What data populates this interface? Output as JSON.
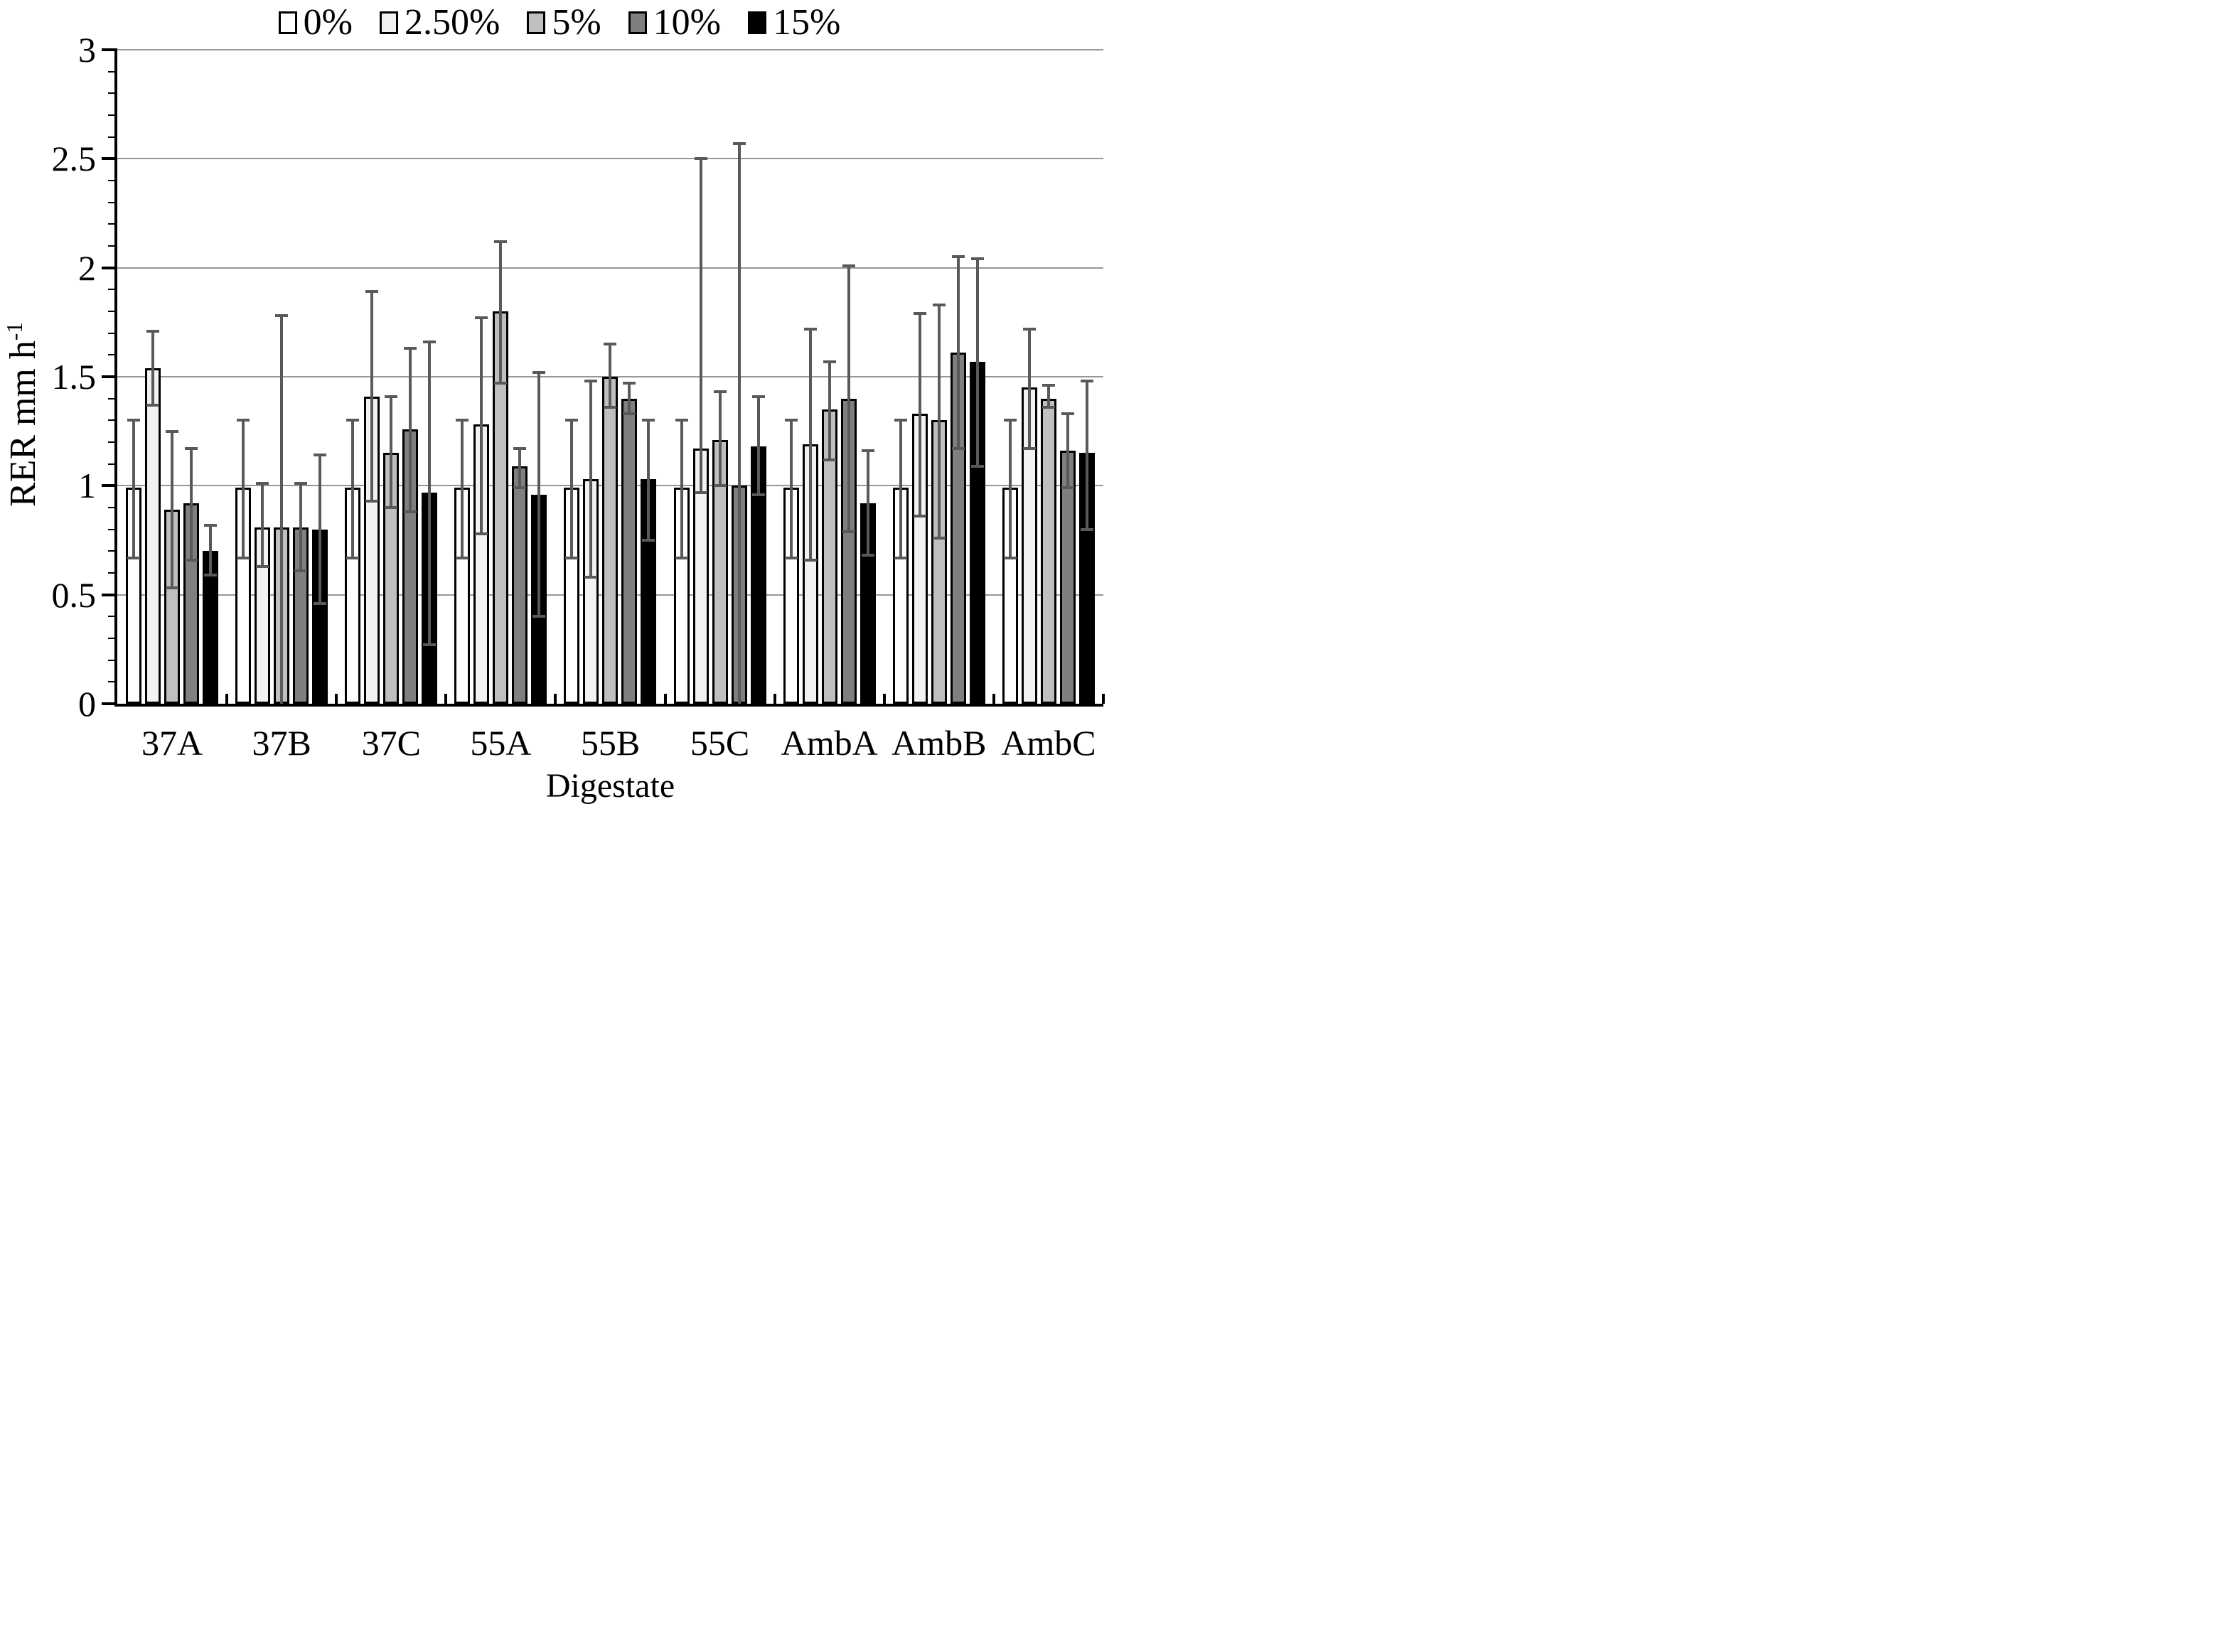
{
  "chart_data": {
    "type": "bar",
    "title": "",
    "xlabel": "Digestate",
    "ylabel_main": "RER mm h",
    "ylabel_sup": "-1",
    "ylim": [
      0,
      3
    ],
    "ytick_step": 0.5,
    "ytick_minor_step": 0.1,
    "ytick_labels": [
      "0",
      "0.5",
      "1",
      "1.5",
      "2",
      "2.5",
      "3"
    ],
    "grid": true,
    "legend_position": "top",
    "error_bar_color": "#595959",
    "gridline_color": "#979797",
    "categories": [
      "37A",
      "37B",
      "37C",
      "55A",
      "55B",
      "55C",
      "AmbA",
      "AmbB",
      "AmbC"
    ],
    "series": [
      {
        "name": "0%",
        "color": "#ffffff",
        "values": [
          0.99,
          0.99,
          0.99,
          0.99,
          0.99,
          0.99,
          0.99,
          0.99,
          0.99
        ],
        "err_lo": [
          0.67,
          0.67,
          0.67,
          0.67,
          0.67,
          0.67,
          0.67,
          0.67,
          0.67
        ],
        "err_hi": [
          1.3,
          1.3,
          1.3,
          1.3,
          1.3,
          1.3,
          1.3,
          1.3,
          1.3
        ]
      },
      {
        "name": "2.50%",
        "color": "#f2f2f2",
        "values": [
          1.54,
          0.81,
          1.41,
          1.28,
          1.03,
          1.17,
          1.19,
          1.33,
          1.45
        ],
        "err_lo": [
          1.37,
          0.63,
          0.93,
          0.78,
          0.58,
          0.97,
          0.66,
          0.86,
          1.17
        ],
        "err_hi": [
          1.71,
          1.01,
          1.89,
          1.77,
          1.48,
          2.5,
          1.72,
          1.79,
          1.72
        ]
      },
      {
        "name": "5%",
        "color": "#bfbfbf",
        "values": [
          0.89,
          0.81,
          1.15,
          1.8,
          1.5,
          1.21,
          1.35,
          1.3,
          1.4
        ],
        "err_lo": [
          0.53,
          0.0,
          0.9,
          1.47,
          1.36,
          1.0,
          1.12,
          0.76,
          1.36
        ],
        "err_hi": [
          1.25,
          1.78,
          1.41,
          2.12,
          1.65,
          1.43,
          1.57,
          1.83,
          1.46
        ]
      },
      {
        "name": "10%",
        "color": "#7f7f7f",
        "values": [
          0.92,
          0.81,
          1.26,
          1.09,
          1.4,
          1.0,
          1.4,
          1.61,
          1.16
        ],
        "err_lo": [
          0.66,
          0.61,
          0.88,
          0.99,
          1.33,
          0.0,
          0.79,
          1.17,
          0.99
        ],
        "err_hi": [
          1.17,
          1.01,
          1.63,
          1.17,
          1.47,
          2.57,
          2.01,
          2.05,
          1.33
        ]
      },
      {
        "name": "15%",
        "color": "#000000",
        "values": [
          0.7,
          0.8,
          0.97,
          0.96,
          1.03,
          1.18,
          0.92,
          1.57,
          1.15
        ],
        "err_lo": [
          0.59,
          0.46,
          0.27,
          0.4,
          0.75,
          0.96,
          0.68,
          1.09,
          0.8
        ],
        "err_hi": [
          0.82,
          1.14,
          1.66,
          1.52,
          1.3,
          1.41,
          1.16,
          2.04,
          1.48
        ]
      }
    ]
  }
}
